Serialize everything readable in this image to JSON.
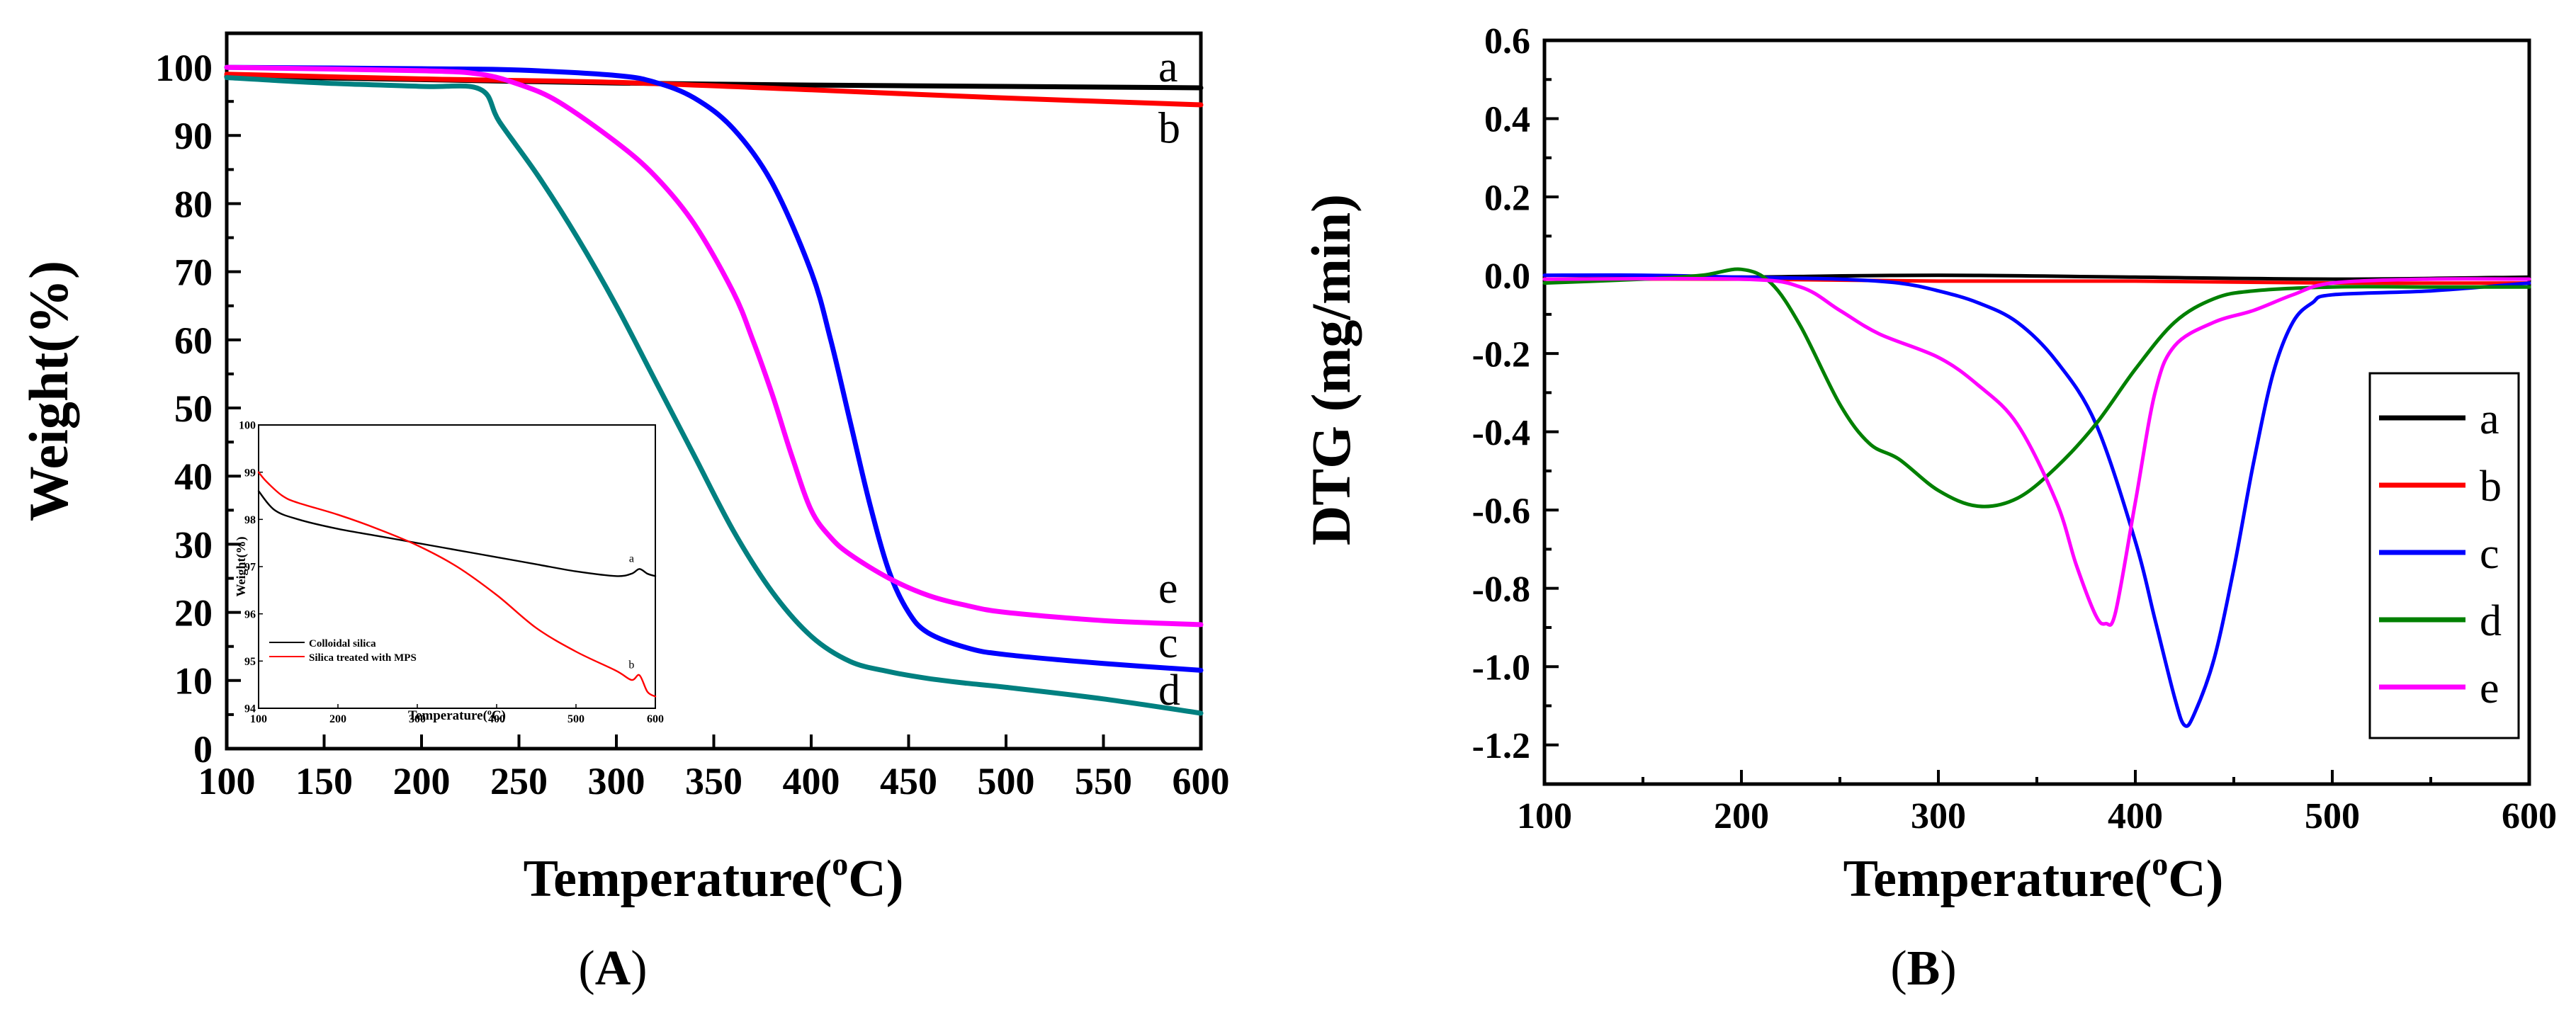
{
  "figure_labels": {
    "A": "A",
    "B": "B"
  },
  "colors": {
    "a": "#000000",
    "b": "#ff0000",
    "c": "#0000ff",
    "d": "#008080",
    "d_dtg": "#008000",
    "e": "#ff00ff",
    "axis": "#000000"
  },
  "chart_data": [
    {
      "id": "A",
      "type": "line",
      "title": "",
      "xlabel": "Temperature(°C)",
      "xlabel_main": "Temperature(",
      "xlabel_sup": "o",
      "xlabel_end": "C)",
      "ylabel": "Weight(%)",
      "xlim": [
        100,
        600
      ],
      "ylim": [
        0,
        105
      ],
      "xticks": [
        100,
        150,
        200,
        250,
        300,
        350,
        400,
        450,
        500,
        550,
        600
      ],
      "yticks": [
        0,
        10,
        20,
        30,
        40,
        50,
        60,
        70,
        80,
        90,
        100
      ],
      "series": [
        {
          "name": "a",
          "label": "a",
          "color": "#000000",
          "label_value": 100,
          "x": [
            100,
            200,
            300,
            400,
            500,
            600
          ],
          "y": [
            98.7,
            98.2,
            97.7,
            97.4,
            97.2,
            97.0
          ]
        },
        {
          "name": "b",
          "label": "b",
          "color": "#ff0000",
          "label_value": 91,
          "x": [
            100,
            200,
            300,
            400,
            500,
            600
          ],
          "y": [
            99.0,
            98.3,
            97.8,
            96.7,
            95.5,
            94.5
          ]
        },
        {
          "name": "c",
          "label": "c",
          "color": "#0000ff",
          "label_value": 15.5,
          "x": [
            100,
            200,
            250,
            300,
            320,
            340,
            360,
            380,
            400,
            410,
            420,
            430,
            440,
            450,
            460,
            480,
            500,
            550,
            600
          ],
          "y": [
            100,
            99.8,
            99.6,
            98.8,
            97.8,
            95.5,
            91,
            83,
            70,
            60,
            48,
            36,
            26,
            20,
            17,
            14.8,
            13.8,
            12.5,
            11.5
          ]
        },
        {
          "name": "d",
          "label": "d",
          "color": "#008080",
          "label_value": 8.5,
          "x": [
            100,
            150,
            200,
            230,
            240,
            260,
            280,
            300,
            320,
            340,
            360,
            380,
            400,
            420,
            440,
            460,
            480,
            500,
            550,
            600
          ],
          "y": [
            98.5,
            97.7,
            97.2,
            96.8,
            92,
            84,
            75,
            65,
            54,
            43,
            32,
            23,
            16.5,
            12.8,
            11.3,
            10.3,
            9.6,
            9.0,
            7.3,
            5.2
          ]
        },
        {
          "name": "e",
          "label": "e",
          "color": "#ff00ff",
          "label_value": 23.5,
          "x": [
            100,
            200,
            230,
            250,
            270,
            300,
            320,
            340,
            360,
            370,
            380,
            390,
            400,
            410,
            420,
            440,
            460,
            480,
            500,
            550,
            600
          ],
          "y": [
            100,
            99.5,
            99,
            97.5,
            95,
            89,
            84,
            77,
            67,
            60,
            52,
            43,
            35,
            31,
            28.5,
            25,
            22.5,
            21,
            20,
            18.8,
            18.2
          ]
        }
      ],
      "inset": {
        "type": "line",
        "xlabel": "Temperature(°C)",
        "xlabel_main": "Temperature(",
        "xlabel_sup": "o",
        "xlabel_end": "C)",
        "ylabel": "Weight(%)",
        "xlim": [
          100,
          600
        ],
        "ylim": [
          94,
          100
        ],
        "xticks": [
          100,
          200,
          300,
          400,
          500,
          600
        ],
        "yticks": [
          94,
          95,
          96,
          97,
          98,
          99,
          100
        ],
        "legend": [
          "Colloidal silica",
          "Silica treated with MPS"
        ],
        "legend_placement": "bottom-left",
        "series": [
          {
            "name": "a",
            "label": "a",
            "color": "#000000",
            "x": [
              100,
              120,
              150,
              200,
              250,
              300,
              350,
              400,
              450,
              500,
              550,
              570,
              580,
              590,
              600
            ],
            "y": [
              98.6,
              98.2,
              98.0,
              97.8,
              97.65,
              97.5,
              97.35,
              97.2,
              97.05,
              96.9,
              96.8,
              96.85,
              96.95,
              96.85,
              96.8
            ]
          },
          {
            "name": "b",
            "label": "b",
            "color": "#ff0000",
            "x": [
              100,
              110,
              130,
              150,
              200,
              250,
              300,
              350,
              400,
              450,
              500,
              550,
              570,
              580,
              590,
              600
            ],
            "y": [
              99.0,
              98.8,
              98.5,
              98.35,
              98.1,
              97.8,
              97.45,
              97.0,
              96.4,
              95.7,
              95.2,
              94.8,
              94.6,
              94.7,
              94.35,
              94.25
            ]
          }
        ]
      }
    },
    {
      "id": "B",
      "type": "line",
      "title": "",
      "xlabel": "Temperature(°C)",
      "xlabel_main": "Temperature(",
      "xlabel_sup": "o",
      "xlabel_end": "C)",
      "ylabel": "DTG (mg/min)",
      "xlim": [
        100,
        600
      ],
      "ylim": [
        -1.3,
        0.6
      ],
      "xticks": [
        100,
        200,
        300,
        400,
        500,
        600
      ],
      "yticks": [
        -1.2,
        -1.0,
        -0.8,
        -0.6,
        -0.4,
        -0.2,
        0.0,
        0.2,
        0.4,
        0.6
      ],
      "ytick_labels": [
        "-1.2",
        "-1.0",
        "-0.8",
        "-0.6",
        "-0.4",
        "-0.2",
        "0.0",
        "0.2",
        "0.4",
        "0.6"
      ],
      "legend_placement": "bottom-right",
      "series": [
        {
          "name": "a",
          "label": "a",
          "color": "#000000",
          "x": [
            100,
            200,
            300,
            400,
            500,
            600
          ],
          "y": [
            -0.01,
            -0.005,
            0.0,
            -0.005,
            -0.01,
            -0.005
          ]
        },
        {
          "name": "b",
          "label": "b",
          "color": "#ff0000",
          "x": [
            100,
            200,
            300,
            400,
            500,
            600
          ],
          "y": [
            -0.01,
            -0.01,
            -0.015,
            -0.015,
            -0.02,
            -0.02
          ]
        },
        {
          "name": "c",
          "label": "c",
          "color": "#0000ff",
          "x": [
            100,
            150,
            200,
            250,
            280,
            300,
            320,
            340,
            360,
            380,
            400,
            410,
            420,
            425,
            430,
            440,
            450,
            460,
            470,
            480,
            490,
            500,
            550,
            600
          ],
          "y": [
            0.0,
            0.0,
            -0.005,
            -0.01,
            -0.02,
            -0.04,
            -0.07,
            -0.12,
            -0.22,
            -0.38,
            -0.68,
            -0.88,
            -1.08,
            -1.15,
            -1.12,
            -0.98,
            -0.75,
            -0.48,
            -0.25,
            -0.12,
            -0.07,
            -0.05,
            -0.04,
            -0.02
          ]
        },
        {
          "name": "d",
          "label": "d",
          "color": "#008000",
          "x": [
            100,
            150,
            180,
            200,
            215,
            230,
            250,
            265,
            280,
            300,
            320,
            340,
            360,
            380,
            400,
            420,
            440,
            460,
            500,
            550,
            600
          ],
          "y": [
            -0.02,
            -0.01,
            0.0,
            0.015,
            -0.02,
            -0.13,
            -0.33,
            -0.43,
            -0.47,
            -0.55,
            -0.59,
            -0.57,
            -0.49,
            -0.38,
            -0.24,
            -0.12,
            -0.06,
            -0.04,
            -0.03,
            -0.03,
            -0.03
          ]
        },
        {
          "name": "e",
          "label": "e",
          "color": "#ff00ff",
          "x": [
            100,
            200,
            230,
            250,
            270,
            300,
            320,
            340,
            360,
            370,
            380,
            385,
            390,
            400,
            410,
            420,
            440,
            460,
            480,
            500,
            550,
            600
          ],
          "y": [
            -0.01,
            -0.01,
            -0.03,
            -0.09,
            -0.15,
            -0.21,
            -0.28,
            -0.38,
            -0.58,
            -0.74,
            -0.87,
            -0.89,
            -0.86,
            -0.58,
            -0.3,
            -0.18,
            -0.12,
            -0.09,
            -0.05,
            -0.02,
            -0.01,
            -0.01
          ]
        }
      ]
    }
  ]
}
